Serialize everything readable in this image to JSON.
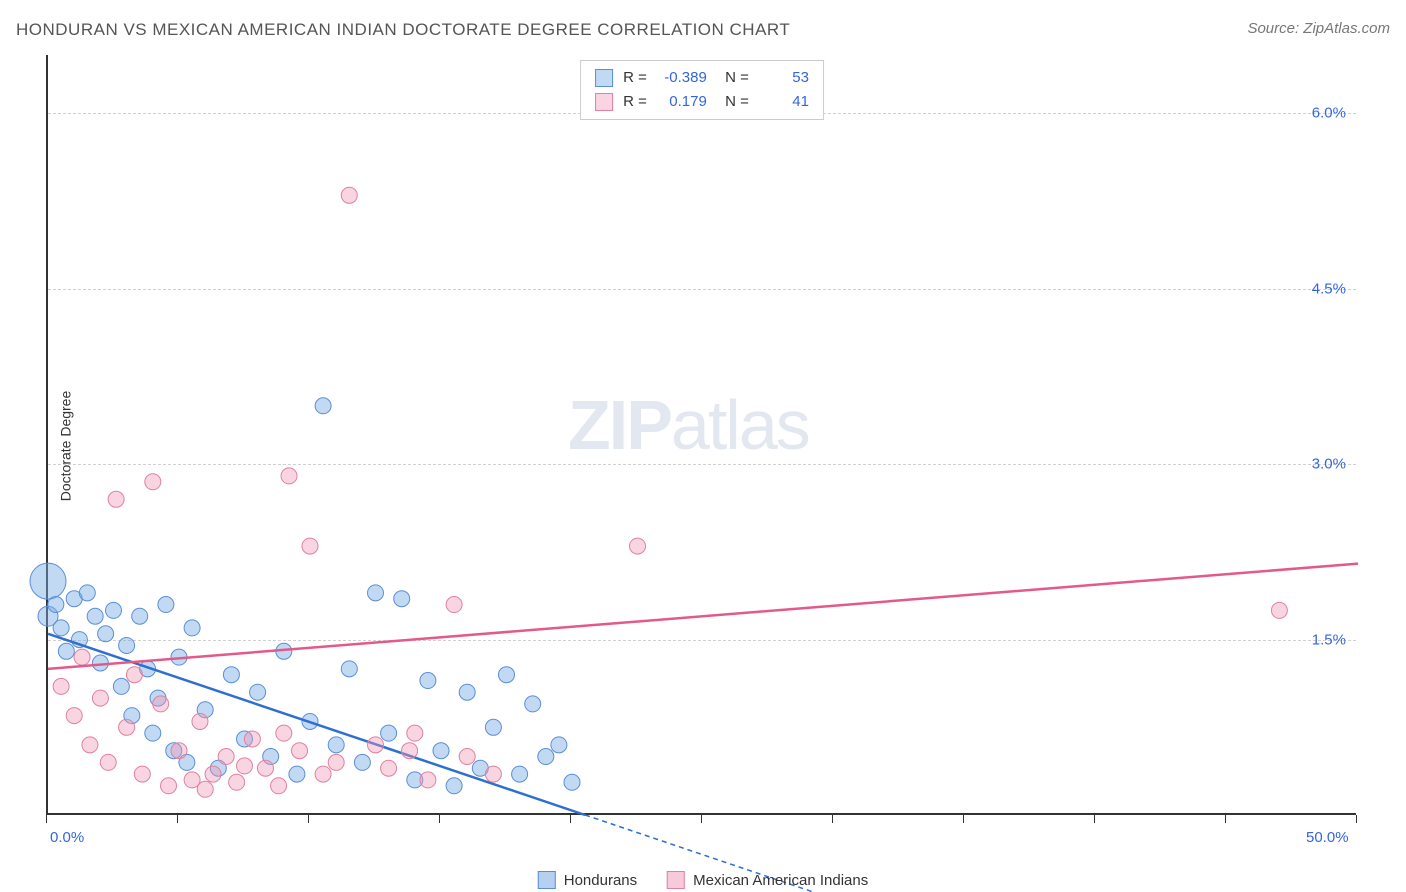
{
  "header": {
    "title": "HONDURAN VS MEXICAN AMERICAN INDIAN DOCTORATE DEGREE CORRELATION CHART",
    "source": "Source: ZipAtlas.com"
  },
  "chart": {
    "type": "scatter",
    "ylabel": "Doctorate Degree",
    "xlim": [
      0,
      50
    ],
    "ylim": [
      0,
      6.5
    ],
    "x_ticks": [
      0,
      5,
      10,
      15,
      20,
      25,
      30,
      35,
      40,
      45,
      50
    ],
    "x_tick_labels_visible": {
      "0": "0.0%",
      "50": "50.0%"
    },
    "y_grid": [
      1.5,
      3.0,
      4.5,
      6.0
    ],
    "y_tick_labels": [
      "1.5%",
      "3.0%",
      "4.5%",
      "6.0%"
    ],
    "background_color": "#ffffff",
    "grid_color": "#d0d0d0",
    "axis_color": "#333333",
    "tick_label_color": "#3366dd",
    "watermark_text": "ZIPatlas",
    "watermark_color": "rgba(150,170,200,0.28)",
    "series": [
      {
        "name": "Hondurans",
        "marker_fill": "rgba(120,170,230,0.45)",
        "marker_stroke": "#5a8fd6",
        "line_color": "#2e6fd0",
        "R": "-0.389",
        "N": "53",
        "trend": {
          "x1": 0,
          "y1": 1.55,
          "x2": 20.5,
          "y2": 0,
          "dash_extend_x": 30
        },
        "points": [
          [
            0,
            2.0,
            18
          ],
          [
            0,
            1.7,
            10
          ],
          [
            0.3,
            1.8,
            8
          ],
          [
            0.5,
            1.6,
            8
          ],
          [
            0.7,
            1.4,
            8
          ],
          [
            1.0,
            1.85,
            8
          ],
          [
            1.2,
            1.5,
            8
          ],
          [
            1.5,
            1.9,
            8
          ],
          [
            1.8,
            1.7,
            8
          ],
          [
            2.0,
            1.3,
            8
          ],
          [
            2.2,
            1.55,
            8
          ],
          [
            2.5,
            1.75,
            8
          ],
          [
            2.8,
            1.1,
            8
          ],
          [
            3.0,
            1.45,
            8
          ],
          [
            3.2,
            0.85,
            8
          ],
          [
            3.5,
            1.7,
            8
          ],
          [
            3.8,
            1.25,
            8
          ],
          [
            4.0,
            0.7,
            8
          ],
          [
            4.2,
            1.0,
            8
          ],
          [
            4.5,
            1.8,
            8
          ],
          [
            4.8,
            0.55,
            8
          ],
          [
            5.0,
            1.35,
            8
          ],
          [
            5.3,
            0.45,
            8
          ],
          [
            5.5,
            1.6,
            8
          ],
          [
            6.0,
            0.9,
            8
          ],
          [
            6.5,
            0.4,
            8
          ],
          [
            7.0,
            1.2,
            8
          ],
          [
            7.5,
            0.65,
            8
          ],
          [
            8.0,
            1.05,
            8
          ],
          [
            8.5,
            0.5,
            8
          ],
          [
            9.0,
            1.4,
            8
          ],
          [
            9.5,
            0.35,
            8
          ],
          [
            10.0,
            0.8,
            8
          ],
          [
            10.5,
            3.5,
            8
          ],
          [
            11.0,
            0.6,
            8
          ],
          [
            11.5,
            1.25,
            8
          ],
          [
            12.0,
            0.45,
            8
          ],
          [
            12.5,
            1.9,
            8
          ],
          [
            13.0,
            0.7,
            8
          ],
          [
            13.5,
            1.85,
            8
          ],
          [
            14.0,
            0.3,
            8
          ],
          [
            14.5,
            1.15,
            8
          ],
          [
            15.0,
            0.55,
            8
          ],
          [
            15.5,
            0.25,
            8
          ],
          [
            16.0,
            1.05,
            8
          ],
          [
            16.5,
            0.4,
            8
          ],
          [
            17.0,
            0.75,
            8
          ],
          [
            17.5,
            1.2,
            8
          ],
          [
            18.0,
            0.35,
            8
          ],
          [
            18.5,
            0.95,
            8
          ],
          [
            19.0,
            0.5,
            8
          ],
          [
            19.5,
            0.6,
            8
          ],
          [
            20.0,
            0.28,
            8
          ]
        ]
      },
      {
        "name": "Mexican American Indians",
        "marker_fill": "rgba(240,150,180,0.4)",
        "marker_stroke": "#e0819f",
        "line_color": "#e35a87",
        "R": "0.179",
        "N": "41",
        "trend": {
          "x1": 0,
          "y1": 1.25,
          "x2": 50,
          "y2": 2.15
        },
        "points": [
          [
            0.5,
            1.1,
            8
          ],
          [
            1.0,
            0.85,
            8
          ],
          [
            1.3,
            1.35,
            8
          ],
          [
            1.6,
            0.6,
            8
          ],
          [
            2.0,
            1.0,
            8
          ],
          [
            2.3,
            0.45,
            8
          ],
          [
            2.6,
            2.7,
            8
          ],
          [
            3.0,
            0.75,
            8
          ],
          [
            3.3,
            1.2,
            8
          ],
          [
            3.6,
            0.35,
            8
          ],
          [
            4.0,
            2.85,
            8
          ],
          [
            4.3,
            0.95,
            8
          ],
          [
            4.6,
            0.25,
            8
          ],
          [
            5.0,
            0.55,
            8
          ],
          [
            5.5,
            0.3,
            8
          ],
          [
            6.0,
            0.22,
            8
          ],
          [
            6.3,
            0.35,
            8
          ],
          [
            6.8,
            0.5,
            8
          ],
          [
            7.2,
            0.28,
            8
          ],
          [
            7.8,
            0.65,
            8
          ],
          [
            8.3,
            0.4,
            8
          ],
          [
            8.8,
            0.25,
            8
          ],
          [
            9.2,
            2.9,
            8
          ],
          [
            9.6,
            0.55,
            8
          ],
          [
            10.0,
            2.3,
            8
          ],
          [
            10.5,
            0.35,
            8
          ],
          [
            11.0,
            0.45,
            8
          ],
          [
            11.5,
            5.3,
            8
          ],
          [
            12.5,
            0.6,
            8
          ],
          [
            13.0,
            0.4,
            8
          ],
          [
            14.0,
            0.7,
            8
          ],
          [
            14.5,
            0.3,
            8
          ],
          [
            15.5,
            1.8,
            8
          ],
          [
            16.0,
            0.5,
            8
          ],
          [
            17.0,
            0.35,
            8
          ],
          [
            22.5,
            2.3,
            8
          ],
          [
            47.0,
            1.75,
            8
          ],
          [
            5.8,
            0.8,
            8
          ],
          [
            7.5,
            0.42,
            8
          ],
          [
            9.0,
            0.7,
            8
          ],
          [
            13.8,
            0.55,
            8
          ]
        ]
      }
    ],
    "legend_bottom": [
      {
        "label": "Hondurans",
        "fill": "rgba(120,170,230,0.55)",
        "stroke": "#5a8fd6"
      },
      {
        "label": "Mexican American Indians",
        "fill": "rgba(240,150,180,0.5)",
        "stroke": "#e0819f"
      }
    ]
  }
}
